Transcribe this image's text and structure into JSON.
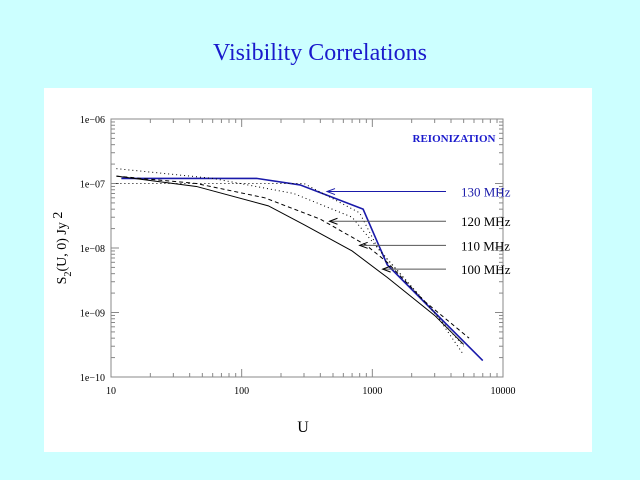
{
  "slide": {
    "title": "Visibility Correlations"
  },
  "chart_data": {
    "type": "line",
    "title": "",
    "annotation": "REIONIZATION",
    "xlabel": "U",
    "ylabel": "S2(U, 0)   Jy 2",
    "ylabel_parts": {
      "s": "S",
      "sub": "2",
      "rest": "(U,  0)",
      "unit": "Jy",
      "sup": "2"
    },
    "xscale": "log",
    "yscale": "log",
    "xlim": [
      10,
      10000
    ],
    "ylim": [
      1e-10,
      1e-06
    ],
    "xticks": [
      "10",
      "100",
      "1000",
      "10000"
    ],
    "yticks": [
      "1e−10",
      "1e−09",
      "1e−08",
      "1e−07",
      "1e−06"
    ],
    "series": [
      {
        "name": "130 MHz",
        "style": "solid-blue",
        "color": "#1a1aaa",
        "x": [
          12,
          50,
          130,
          280,
          850,
          1300,
          3000,
          7000
        ],
        "y": [
          1.2e-07,
          1.2e-07,
          1.2e-07,
          9.5e-08,
          4e-08,
          5.5e-09,
          1e-09,
          1.8e-10
        ]
      },
      {
        "name": "120 MHz",
        "style": "dotted",
        "color": "#000000",
        "x": [
          11,
          60,
          250,
          700,
          1200,
          3000,
          5000
        ],
        "y": [
          1.7e-07,
          1.2e-07,
          7e-08,
          3e-08,
          8e-09,
          1e-09,
          2.2e-10
        ]
      },
      {
        "name": "110 MHz",
        "style": "dashed",
        "color": "#000000",
        "x": [
          11,
          45,
          150,
          400,
          900,
          1300,
          2500,
          5500
        ],
        "y": [
          1.3e-07,
          1e-07,
          6e-08,
          2.8e-08,
          1.1e-08,
          6e-09,
          1.5e-09,
          4e-10
        ]
      },
      {
        "name": "100 MHz",
        "style": "solid",
        "color": "#000000",
        "x": [
          11,
          45,
          160,
          300,
          700,
          1300,
          3000,
          5000
        ],
        "y": [
          1.3e-07,
          9e-08,
          4.5e-08,
          2.3e-08,
          9e-09,
          3.5e-09,
          9e-10,
          3.2e-10
        ]
      },
      {
        "name": "",
        "style": "dotted",
        "color": "#000000",
        "x": [
          11,
          300,
          800,
          1100,
          2000,
          5000
        ],
        "y": [
          1e-07,
          1e-07,
          3.5e-08,
          1e-08,
          2.5e-09,
          3e-10
        ]
      }
    ],
    "labels": [
      {
        "text": "130 MHz",
        "color": "#1a1aaa",
        "arrow_to": [
          450,
          7.5e-08
        ],
        "y": 7.5e-08
      },
      {
        "text": "120 MHz",
        "color": "#000000",
        "arrow_to": [
          470,
          2.6e-08
        ],
        "y": 2.6e-08
      },
      {
        "text": "110 MHz",
        "color": "#000000",
        "arrow_to": [
          800,
          1.1e-08
        ],
        "y": 1.1e-08
      },
      {
        "text": "100 MHz",
        "color": "#000000",
        "arrow_to": [
          1200,
          4.7e-09
        ],
        "y": 4.7e-09
      }
    ],
    "grid": false,
    "legend": "right-inline"
  }
}
